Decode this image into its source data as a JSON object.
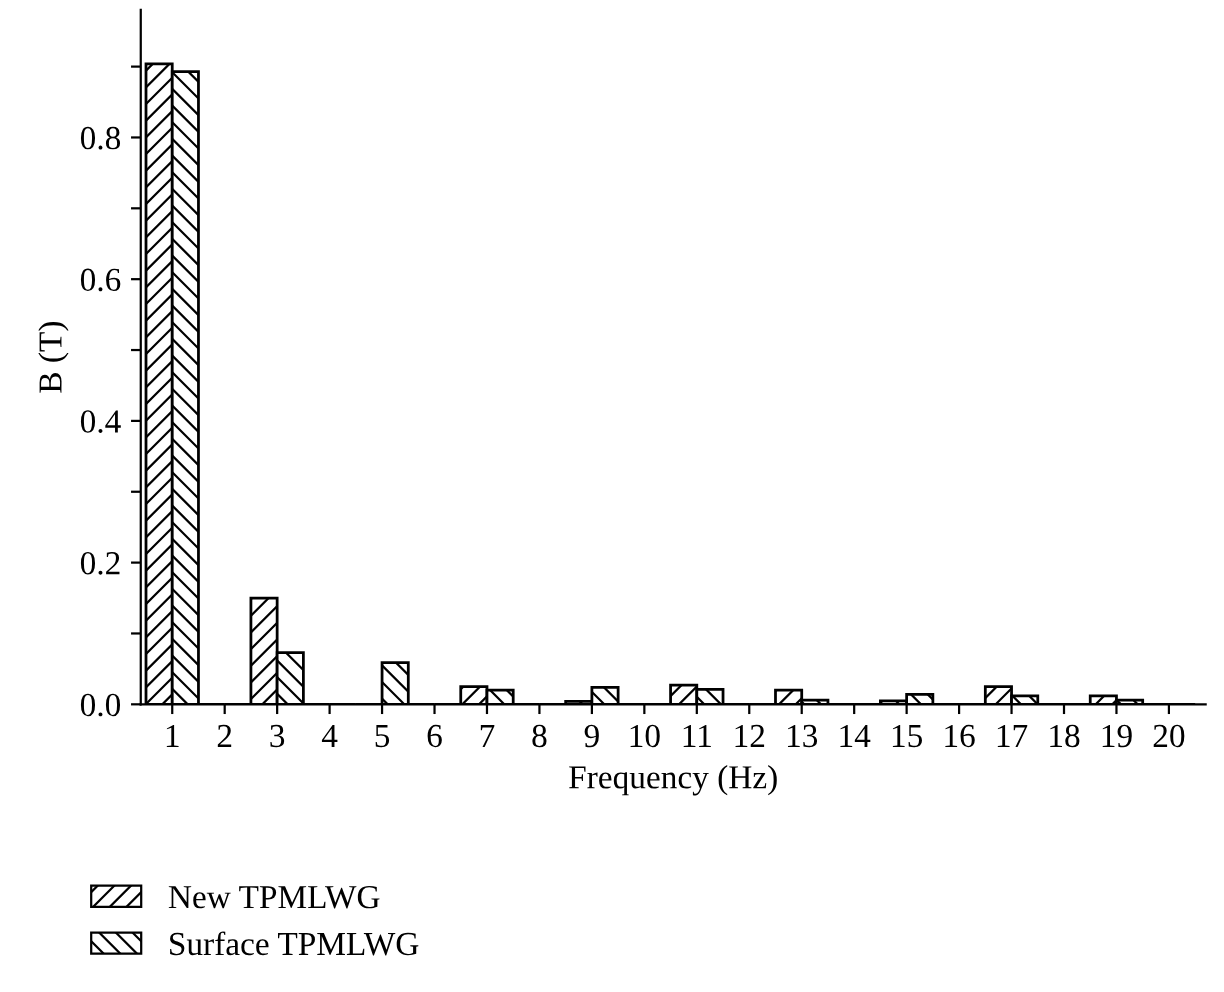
{
  "chart_data": {
    "type": "bar",
    "xlabel": "Frequency (Hz)",
    "ylabel": "B (T)",
    "categories": [
      "1",
      "2",
      "3",
      "4",
      "5",
      "6",
      "7",
      "8",
      "9",
      "10",
      "11",
      "12",
      "13",
      "14",
      "15",
      "16",
      "17",
      "18",
      "19",
      "20"
    ],
    "series": [
      {
        "name": "New TPMLWG",
        "color": "#000000",
        "values": [
          0.904,
          0,
          0.15,
          0,
          0,
          0,
          0.025,
          0,
          0.004,
          0,
          0.027,
          0,
          0.02,
          0,
          0.005,
          0,
          0.025,
          0,
          0.012,
          0
        ]
      },
      {
        "name": "Surface TPMLWG",
        "color": "#000000",
        "values": [
          0.893,
          0,
          0.073,
          0,
          0.059,
          0,
          0.02,
          0,
          0.024,
          0,
          0.021,
          0,
          0.006,
          0,
          0.014,
          0,
          0.012,
          0,
          0.006,
          0
        ]
      }
    ],
    "ylim": [
      0,
      0.98
    ],
    "yticks": [
      {
        "value": 0,
        "label": "0.0"
      },
      {
        "value": 0.1,
        "label": null
      },
      {
        "value": 0.2,
        "label": "0.2"
      },
      {
        "value": 0.3,
        "label": null
      },
      {
        "value": 0.4,
        "label": "0.4"
      },
      {
        "value": 0.5,
        "label": null
      },
      {
        "value": 0.6,
        "label": "0.6"
      },
      {
        "value": 0.7,
        "label": null
      },
      {
        "value": 0.8,
        "label": "0.8"
      },
      {
        "value": 0.9,
        "label": null
      }
    ],
    "grid": false,
    "legend": "bottom left"
  }
}
